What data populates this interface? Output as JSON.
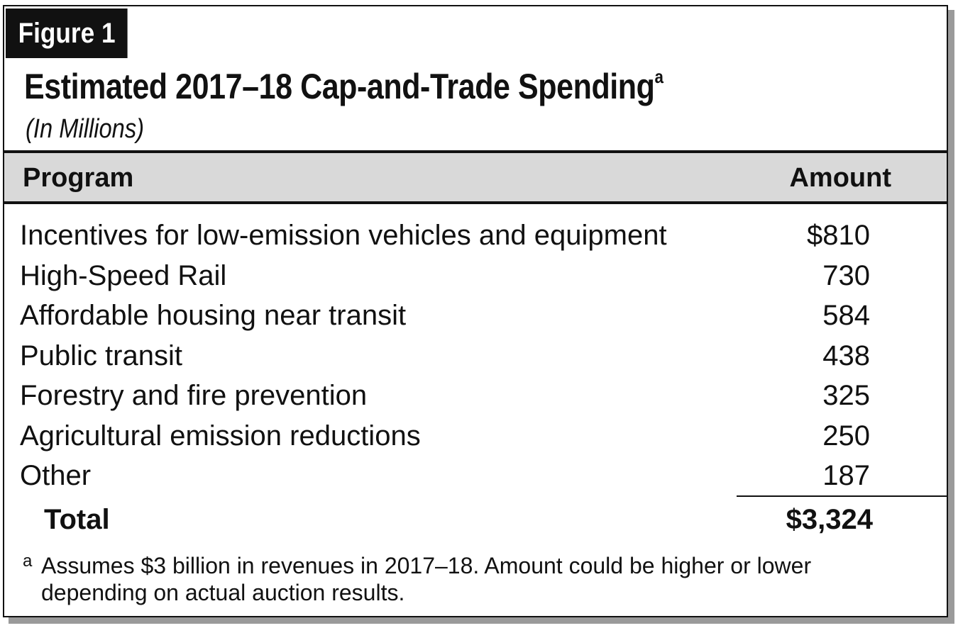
{
  "figure": {
    "label": "Figure 1",
    "title": "Estimated 2017–18 Cap-and-Trade Spending",
    "title_superscript": "a",
    "subtitle": "(In Millions)"
  },
  "table": {
    "headers": {
      "program": "Program",
      "amount": "Amount"
    },
    "rows": [
      {
        "program": "Incentives for low-emission vehicles and equipment",
        "amount": "$810"
      },
      {
        "program": "High-Speed Rail",
        "amount": "730"
      },
      {
        "program": "Affordable housing near transit",
        "amount": "584"
      },
      {
        "program": "Public transit",
        "amount": "438"
      },
      {
        "program": "Forestry and fire prevention",
        "amount": "325"
      },
      {
        "program": "Agricultural emission reductions",
        "amount": "250"
      },
      {
        "program": "Other",
        "amount": "187"
      }
    ],
    "total": {
      "label": "Total",
      "amount": "$3,324"
    }
  },
  "footnote": {
    "mark": "a",
    "text": "Assumes $3 billion in revenues in 2017–18. Amount could be higher or lower depending on actual auction results."
  }
}
